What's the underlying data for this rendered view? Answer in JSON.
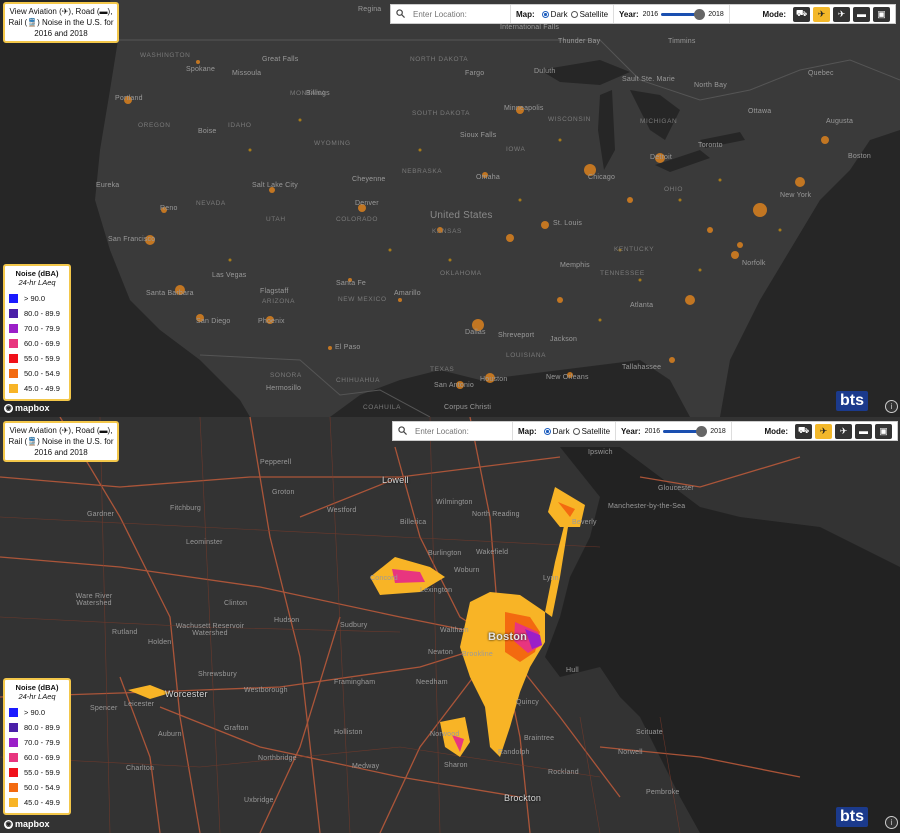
{
  "top": {
    "title": "View Aviation (✈), Road (▬), Rail (🚆) Noise in the U.S. for 2016 and 2018",
    "search_placeholder": "Enter Location:",
    "map_label": "Map:",
    "dark_label": "Dark",
    "satellite_label": "Satellite",
    "year_label": "Year:",
    "year_start": "2016",
    "year_end": "2018",
    "mode_label": "Mode:",
    "legend_title": "Noise (dBA)",
    "legend_subtitle": "24-hr LAeq",
    "mapbox": "mapbox",
    "bts": "bts",
    "places": [
      {
        "n": "Regina",
        "t": "city"
      },
      {
        "n": "International Falls",
        "t": "city"
      },
      {
        "n": "Thunder Bay",
        "t": "city"
      },
      {
        "n": "Timmins",
        "t": "city"
      },
      {
        "n": "WASHINGTON",
        "t": "state"
      },
      {
        "n": "Spokane",
        "t": "city"
      },
      {
        "n": "Missoula",
        "t": "city"
      },
      {
        "n": "Great Falls",
        "t": "city"
      },
      {
        "n": "NORTH DAKOTA",
        "t": "state"
      },
      {
        "n": "Fargo",
        "t": "city"
      },
      {
        "n": "Duluth",
        "t": "city"
      },
      {
        "n": "Sault Ste. Marie",
        "t": "city"
      },
      {
        "n": "North Bay",
        "t": "city"
      },
      {
        "n": "Quebec",
        "t": "city"
      },
      {
        "n": "Portland",
        "t": "city"
      },
      {
        "n": "MONTANA",
        "t": "state"
      },
      {
        "n": "Billings",
        "t": "city"
      },
      {
        "n": "Minneapolis",
        "t": "city"
      },
      {
        "n": "Ottawa",
        "t": "city"
      },
      {
        "n": "OREGON",
        "t": "state"
      },
      {
        "n": "IDAHO",
        "t": "state"
      },
      {
        "n": "SOUTH DAKOTA",
        "t": "state"
      },
      {
        "n": "WISCONSIN",
        "t": "state"
      },
      {
        "n": "MICHIGAN",
        "t": "state"
      },
      {
        "n": "Augusta",
        "t": "city"
      },
      {
        "n": "Boise",
        "t": "city"
      },
      {
        "n": "WYOMING",
        "t": "state"
      },
      {
        "n": "Sioux Falls",
        "t": "city"
      },
      {
        "n": "Toronto",
        "t": "city"
      },
      {
        "n": "Detroit",
        "t": "city"
      },
      {
        "n": "Boston",
        "t": "city"
      },
      {
        "n": "Eureka",
        "t": "city"
      },
      {
        "n": "Salt Lake City",
        "t": "city"
      },
      {
        "n": "Cheyenne",
        "t": "city"
      },
      {
        "n": "Omaha",
        "t": "city"
      },
      {
        "n": "Chicago",
        "t": "city"
      },
      {
        "n": "NEBRASKA",
        "t": "state"
      },
      {
        "n": "IOWA",
        "t": "state"
      },
      {
        "n": "NEVADA",
        "t": "state"
      },
      {
        "n": "Denver",
        "t": "city"
      },
      {
        "n": "United States",
        "t": "country"
      },
      {
        "n": "OHIO",
        "t": "state"
      },
      {
        "n": "New York",
        "t": "city"
      },
      {
        "n": "Reno",
        "t": "city"
      },
      {
        "n": "UTAH",
        "t": "state"
      },
      {
        "n": "COLORADO",
        "t": "state"
      },
      {
        "n": "KANSAS",
        "t": "state"
      },
      {
        "n": "St. Louis",
        "t": "city"
      },
      {
        "n": "San Francisco",
        "t": "city"
      },
      {
        "n": "KENTUCKY",
        "t": "state"
      },
      {
        "n": "Las Vegas",
        "t": "city"
      },
      {
        "n": "Norfolk",
        "t": "city"
      },
      {
        "n": "Santa Fe",
        "t": "city"
      },
      {
        "n": "Amarillo",
        "t": "city"
      },
      {
        "n": "Memphis",
        "t": "city"
      },
      {
        "n": "TENNESSEE",
        "t": "state"
      },
      {
        "n": "Flagstaff",
        "t": "city"
      },
      {
        "n": "OKLAHOMA",
        "t": "state"
      },
      {
        "n": "Santa Barbara",
        "t": "city"
      },
      {
        "n": "ARIZONA",
        "t": "state"
      },
      {
        "n": "NEW MEXICO",
        "t": "state"
      },
      {
        "n": "Atlanta",
        "t": "city"
      },
      {
        "n": "San Diego",
        "t": "city"
      },
      {
        "n": "Phoenix",
        "t": "city"
      },
      {
        "n": "Dallas",
        "t": "city"
      },
      {
        "n": "Shreveport",
        "t": "city"
      },
      {
        "n": "El Paso",
        "t": "city"
      },
      {
        "n": "Jackson",
        "t": "city"
      },
      {
        "n": "LOUISIANA",
        "t": "state"
      },
      {
        "n": "Tallahassee",
        "t": "city"
      },
      {
        "n": "SONORA",
        "t": "state"
      },
      {
        "n": "CHIHUAHUA",
        "t": "state"
      },
      {
        "n": "TEXAS",
        "t": "state"
      },
      {
        "n": "Hermosillo",
        "t": "city"
      },
      {
        "n": "San Antonio",
        "t": "city"
      },
      {
        "n": "Houston",
        "t": "city"
      },
      {
        "n": "New Orleans",
        "t": "city"
      },
      {
        "n": "COAHUILA",
        "t": "state"
      },
      {
        "n": "Corpus Christi",
        "t": "city"
      }
    ]
  },
  "bottom": {
    "title": "View Aviation (✈), Road (▬), Rail (🚆) Noise in the U.S. for 2016 and 2018",
    "search_placeholder": "Enter Location:",
    "map_label": "Map:",
    "dark_label": "Dark",
    "satellite_label": "Satellite",
    "year_label": "Year:",
    "year_start": "2016",
    "year_end": "2018",
    "mode_label": "Mode:",
    "legend_title": "Noise (dBA)",
    "legend_subtitle": "24-hr LAeq",
    "mapbox": "mapbox",
    "bts": "bts",
    "places": [
      {
        "n": "Ipswich",
        "t": "city"
      },
      {
        "n": "Pepperell",
        "t": "city"
      },
      {
        "n": "Lowell",
        "t": "mid"
      },
      {
        "n": "Groton",
        "t": "city"
      },
      {
        "n": "Gloucester",
        "t": "city"
      },
      {
        "n": "Gardner",
        "t": "city"
      },
      {
        "n": "Fitchburg",
        "t": "city"
      },
      {
        "n": "Westford",
        "t": "city"
      },
      {
        "n": "Wilmington",
        "t": "city"
      },
      {
        "n": "Beverly",
        "t": "city"
      },
      {
        "n": "Manchester-by-the-Sea",
        "t": "city"
      },
      {
        "n": "North Reading",
        "t": "city"
      },
      {
        "n": "Leominster",
        "t": "city"
      },
      {
        "n": "Billerica",
        "t": "city"
      },
      {
        "n": "Burlington",
        "t": "city"
      },
      {
        "n": "Wakefield",
        "t": "city"
      },
      {
        "n": "Concord",
        "t": "city"
      },
      {
        "n": "Woburn",
        "t": "city"
      },
      {
        "n": "Lynn",
        "t": "city"
      },
      {
        "n": "Lexington",
        "t": "city"
      },
      {
        "n": "Ware River Watershed",
        "t": "city"
      },
      {
        "n": "Wachusett Reservoir Watershed",
        "t": "city"
      },
      {
        "n": "Clinton",
        "t": "city"
      },
      {
        "n": "Hudson",
        "t": "city"
      },
      {
        "n": "Sudbury",
        "t": "city"
      },
      {
        "n": "Waltham",
        "t": "city"
      },
      {
        "n": "Rutland",
        "t": "city"
      },
      {
        "n": "Holden",
        "t": "city"
      },
      {
        "n": "Boston",
        "t": "big"
      },
      {
        "n": "Newton",
        "t": "city"
      },
      {
        "n": "Brookline",
        "t": "city"
      },
      {
        "n": "Shrewsbury",
        "t": "city"
      },
      {
        "n": "Framingham",
        "t": "city"
      },
      {
        "n": "Hull",
        "t": "city"
      },
      {
        "n": "Worcester",
        "t": "mid"
      },
      {
        "n": "Westborough",
        "t": "city"
      },
      {
        "n": "Needham",
        "t": "city"
      },
      {
        "n": "Quincy",
        "t": "city"
      },
      {
        "n": "Spencer",
        "t": "city"
      },
      {
        "n": "Leicester",
        "t": "city"
      },
      {
        "n": "Norwood",
        "t": "city"
      },
      {
        "n": "Scituate",
        "t": "city"
      },
      {
        "n": "Auburn",
        "t": "city"
      },
      {
        "n": "Grafton",
        "t": "city"
      },
      {
        "n": "Holliston",
        "t": "city"
      },
      {
        "n": "Braintree",
        "t": "city"
      },
      {
        "n": "Randolph",
        "t": "city"
      },
      {
        "n": "Charlton",
        "t": "city"
      },
      {
        "n": "Northbridge",
        "t": "city"
      },
      {
        "n": "Medway",
        "t": "city"
      },
      {
        "n": "Sharon",
        "t": "city"
      },
      {
        "n": "Norwell",
        "t": "city"
      },
      {
        "n": "Rockland",
        "t": "city"
      },
      {
        "n": "Brockton",
        "t": "mid"
      },
      {
        "n": "Uxbridge",
        "t": "city"
      },
      {
        "n": "Pembroke",
        "t": "city"
      }
    ]
  },
  "legend": [
    {
      "label": "> 90.0",
      "color": "#1a1aff"
    },
    {
      "label": "80.0 - 89.9",
      "color": "#4a1fa8"
    },
    {
      "label": "70.0 - 79.9",
      "color": "#9b1fc8"
    },
    {
      "label": "60.0 - 69.9",
      "color": "#e8357f"
    },
    {
      "label": "55.0 - 59.9",
      "color": "#f0101a"
    },
    {
      "label": "50.0 - 54.9",
      "color": "#f36a10"
    },
    {
      "label": "45.0 - 49.9",
      "color": "#f8b426"
    }
  ],
  "icons": {
    "search": "search-icon",
    "road": "road-icon",
    "aviation": "airplane-icon",
    "all": "all-modes-icon",
    "rail": "train-icon",
    "info": "info-icon",
    "mapbox": "mapbox-logo"
  }
}
